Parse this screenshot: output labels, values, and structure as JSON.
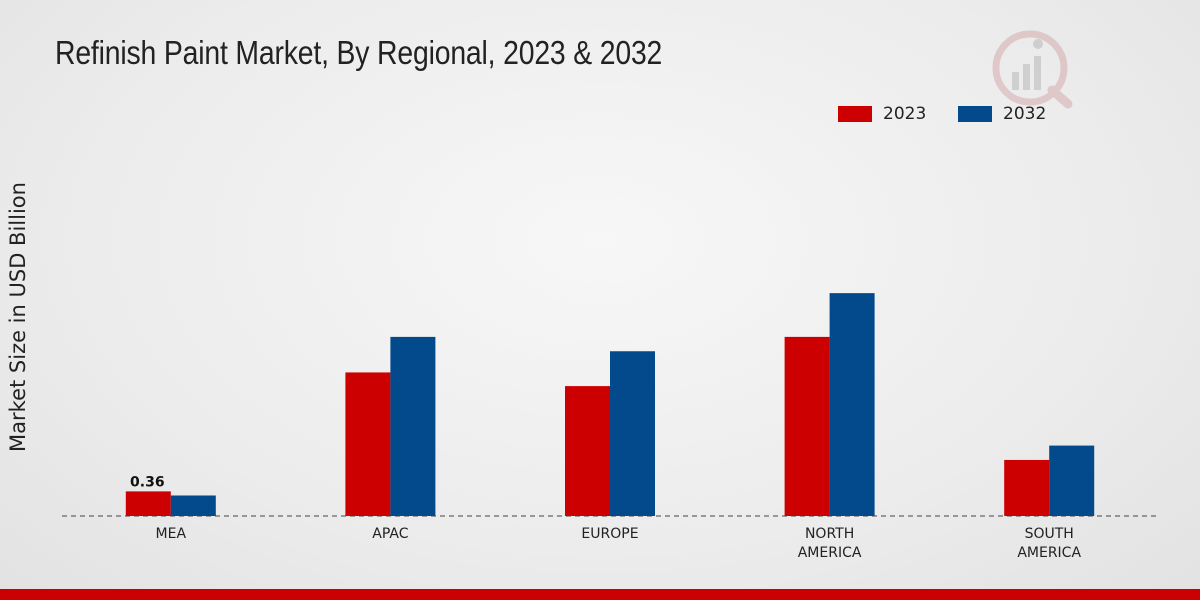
{
  "title": "Refinish Paint Market, By Regional, 2023 & 2032",
  "logo_icon": "chart-logo-icon",
  "colors": {
    "2023": "#cc0000",
    "2032": "#024a8c",
    "accent_bar": "#cc0000"
  },
  "chart_data": {
    "type": "bar",
    "title": "Refinish Paint Market, By Regional, 2023 & 2032",
    "xlabel": "",
    "ylabel": "Market Size in USD Billion",
    "categories": [
      "MEA",
      "APAC",
      "EUROPE",
      "NORTH AMERICA",
      "SOUTH AMERICA"
    ],
    "category_lines": [
      [
        "MEA"
      ],
      [
        "APAC"
      ],
      [
        "EUROPE"
      ],
      [
        "NORTH",
        "AMERICA"
      ],
      [
        "SOUTH",
        "AMERICA"
      ]
    ],
    "series": [
      {
        "name": "2023",
        "values": [
          0.36,
          2.1,
          1.9,
          2.62,
          0.82
        ]
      },
      {
        "name": "2032",
        "values": [
          0.3,
          2.62,
          2.41,
          3.26,
          1.03
        ]
      }
    ],
    "data_labels": [
      {
        "series": 0,
        "index": 0,
        "text": "0.36"
      }
    ],
    "ylim": [
      0,
      5.5
    ],
    "grid": false,
    "legend_position": "top-right"
  }
}
